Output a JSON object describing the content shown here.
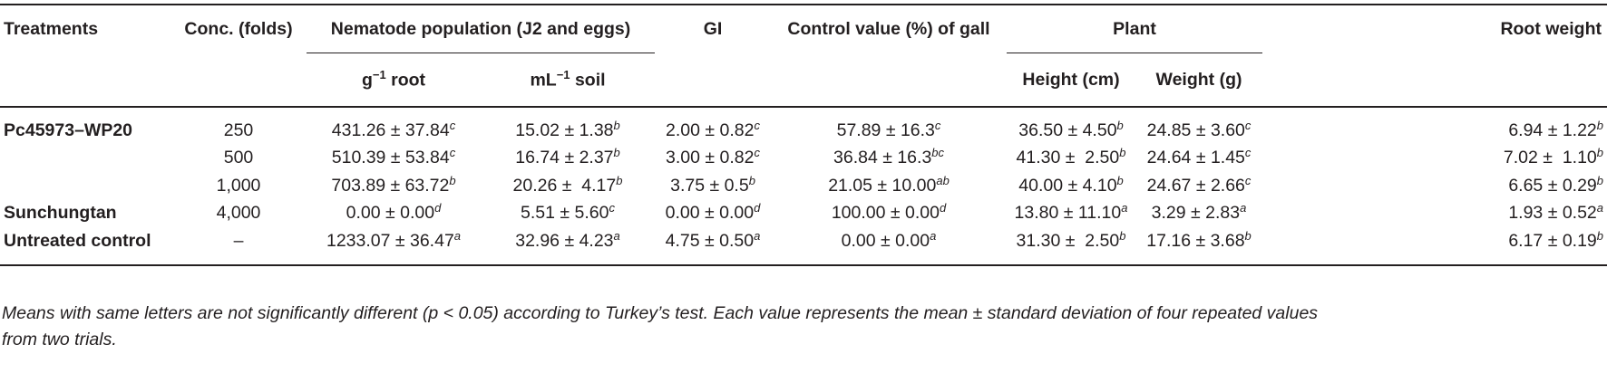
{
  "headers": {
    "treatments": "Treatments",
    "conc": "Conc. (folds)",
    "nematode": "Nematode population (J2 and eggs)",
    "gi": "GI",
    "control_value": "Control value (%) of gall",
    "plant": "Plant",
    "root_weight": "Root weight",
    "root_base": "g",
    "root_exp": "−1",
    "root_tail": " root",
    "soil_base": "mL",
    "soil_exp": "−1",
    "soil_tail": " soil",
    "height": "Height (cm)",
    "weight": "Weight (g)"
  },
  "rows": [
    {
      "treatment": "Pc45973–WP20",
      "conc": "250",
      "cells": [
        {
          "v": "431.26 ± 37.84",
          "s": "c"
        },
        {
          "v": "15.02 ± 1.38",
          "s": "b"
        },
        {
          "v": "2.00 ± 0.82",
          "s": "c"
        },
        {
          "v": "57.89 ± 16.3",
          "s": "c"
        },
        {
          "v": "36.50 ± 4.50",
          "s": "b"
        },
        {
          "v": "24.85 ± 3.60",
          "s": "c"
        },
        {
          "v": "6.94 ± 1.22",
          "s": "b"
        }
      ]
    },
    {
      "treatment": "",
      "conc": "500",
      "cells": [
        {
          "v": "510.39 ± 53.84",
          "s": "c"
        },
        {
          "v": "16.74 ± 2.37",
          "s": "b"
        },
        {
          "v": "3.00 ± 0.82",
          "s": "c"
        },
        {
          "v": "36.84 ± 16.3",
          "s": "bc"
        },
        {
          "v": "41.30 ±  2.50",
          "s": "b"
        },
        {
          "v": "24.64 ± 1.45",
          "s": "c"
        },
        {
          "v": "7.02 ±  1.10",
          "s": "b"
        }
      ]
    },
    {
      "treatment": "",
      "conc": "1,000",
      "cells": [
        {
          "v": "703.89 ± 63.72",
          "s": "b"
        },
        {
          "v": "20.26 ±  4.17",
          "s": "b"
        },
        {
          "v": "3.75 ± 0.5",
          "s": "b"
        },
        {
          "v": "21.05 ± 10.00",
          "s": "ab"
        },
        {
          "v": "40.00 ± 4.10",
          "s": "b"
        },
        {
          "v": "24.67 ± 2.66",
          "s": "c"
        },
        {
          "v": "6.65 ± 0.29",
          "s": "b"
        }
      ]
    },
    {
      "treatment": "Sunchungtan",
      "conc": "4,000",
      "cells": [
        {
          "v": "0.00 ± 0.00",
          "s": "d"
        },
        {
          "v": "5.51 ± 5.60",
          "s": "c"
        },
        {
          "v": "0.00 ± 0.00",
          "s": "d"
        },
        {
          "v": "100.00 ± 0.00",
          "s": "d"
        },
        {
          "v": "13.80 ± 11.10",
          "s": "a"
        },
        {
          "v": "3.29 ± 2.83",
          "s": "a"
        },
        {
          "v": "1.93 ± 0.52",
          "s": "a"
        }
      ]
    },
    {
      "treatment": "Untreated control",
      "conc": "–",
      "cells": [
        {
          "v": "1233.07 ± 36.47",
          "s": "a"
        },
        {
          "v": "32.96 ± 4.23",
          "s": "a"
        },
        {
          "v": "4.75 ± 0.50",
          "s": "a"
        },
        {
          "v": "0.00 ± 0.00",
          "s": "a"
        },
        {
          "v": "31.30 ±  2.50",
          "s": "b"
        },
        {
          "v": "17.16 ± 3.68",
          "s": "b"
        },
        {
          "v": "6.17 ± 0.19",
          "s": "b"
        }
      ]
    }
  ],
  "note_line1": "Means with same letters are not significantly different (p < 0.05) according to Turkey’s test. Each value represents the mean ± standard deviation of four repeated values",
  "note_line2": "from two trials."
}
